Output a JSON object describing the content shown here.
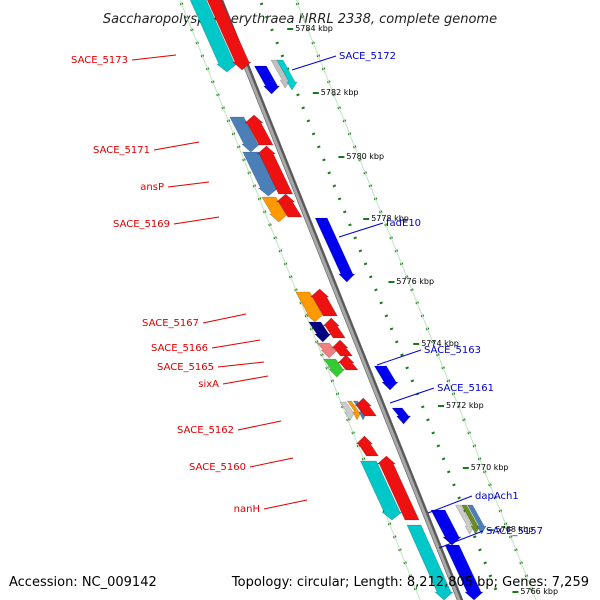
{
  "title": "Saccharopolyspora erythraea NRRL 2338, complete genome",
  "accession": "Accession: NC_009142",
  "topology": "Topology: circular; Length: 8,212,805 bp; Genes: 7,259",
  "colors": {
    "backbone": "#8c8c8c",
    "tick_marks": "#1a7a1a",
    "forward_label": "#dd0000",
    "reverse_label": "#0000cc",
    "ruler_line": "#39a339"
  },
  "ticks": [
    {
      "label": "5784 kbp"
    },
    {
      "label": "5782 kbp"
    },
    {
      "label": "5780 kbp"
    },
    {
      "label": "5778 kbp"
    },
    {
      "label": "5776 kbp"
    },
    {
      "label": "5774 kbp"
    },
    {
      "label": "5772 kbp"
    },
    {
      "label": "5770 kbp"
    },
    {
      "label": "5768 kbp"
    },
    {
      "label": "5766 kbp"
    }
  ],
  "left_labels": [
    {
      "text": "SACE_5173"
    },
    {
      "text": "SACE_5171"
    },
    {
      "text": "ansP"
    },
    {
      "text": "SACE_5169"
    },
    {
      "text": "SACE_5167"
    },
    {
      "text": "SACE_5166"
    },
    {
      "text": "SACE_5165"
    },
    {
      "text": "sixA"
    },
    {
      "text": "SACE_5162"
    },
    {
      "text": "SACE_5160"
    },
    {
      "text": "nanH"
    }
  ],
  "right_labels": [
    {
      "text": "SACE_5172"
    },
    {
      "text": "fadE10"
    },
    {
      "text": "SACE_5163"
    },
    {
      "text": "SACE_5161"
    },
    {
      "text": "dapAch1"
    },
    {
      "text": "SACE_5157"
    }
  ]
}
